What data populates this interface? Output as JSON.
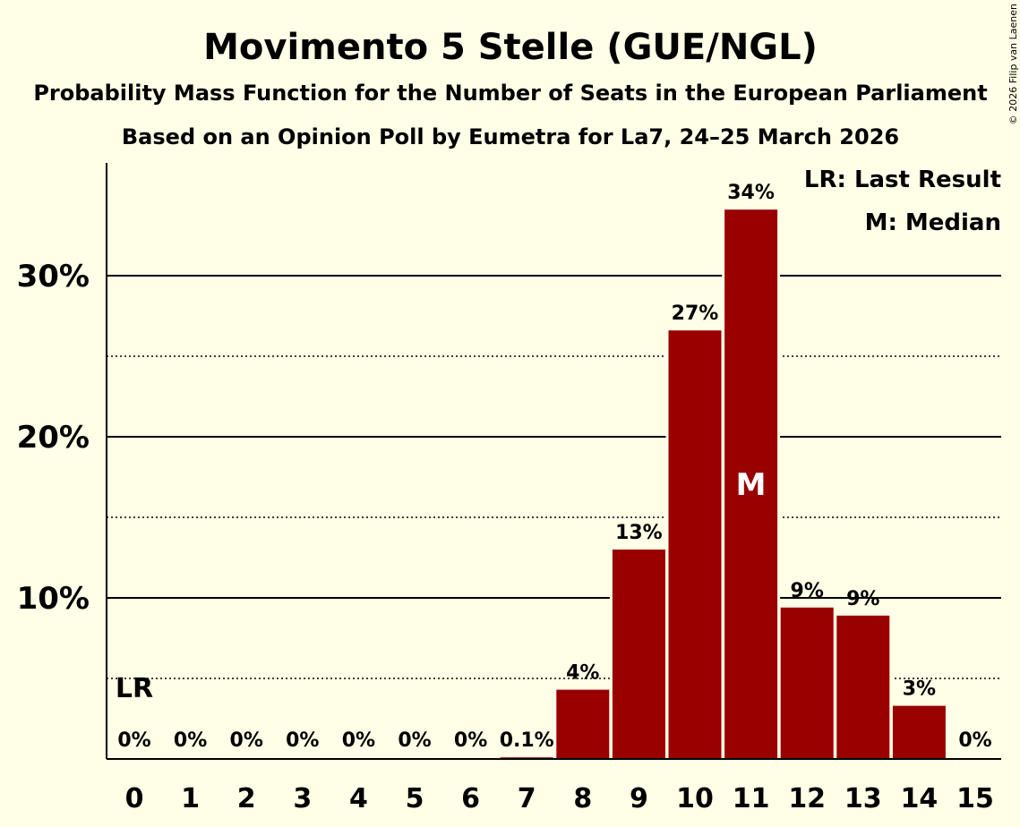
{
  "chart_data": {
    "type": "bar",
    "title": "Movimento 5 Stelle (GUE/NGL)",
    "subtitle": "Probability Mass Function for the Number of Seats in the European Parliament",
    "subtitle2": "Based on an Opinion Poll by Eumetra for La7, 24–25 March 2026",
    "copyright": "© 2026 Filip van Laenen",
    "categories": [
      "0",
      "1",
      "2",
      "3",
      "4",
      "5",
      "6",
      "7",
      "8",
      "9",
      "10",
      "11",
      "12",
      "13",
      "14",
      "15"
    ],
    "values": [
      0,
      0,
      0,
      0,
      0,
      0,
      0,
      0.1,
      4.3,
      13.0,
      26.6,
      34.1,
      9.4,
      8.9,
      3.3,
      0
    ],
    "data_labels": [
      "0%",
      "0%",
      "0%",
      "0%",
      "0%",
      "0%",
      "0%",
      "0.1%",
      "4%",
      "13%",
      "27%",
      "34%",
      "9%",
      "9%",
      "3%",
      "0%"
    ],
    "ylim": [
      0,
      37
    ],
    "yticks": [
      10,
      20,
      30
    ],
    "ytick_labels": [
      "10%",
      "20%",
      "30%"
    ],
    "minor_gridlines": [
      5,
      15,
      25
    ],
    "bar_color": "#990000",
    "last_result_index": 0,
    "last_result_label": "LR",
    "median_index": 11,
    "median_label": "M",
    "legend": [
      "LR: Last Result",
      "M: Median"
    ],
    "legend_position": "top-right"
  }
}
